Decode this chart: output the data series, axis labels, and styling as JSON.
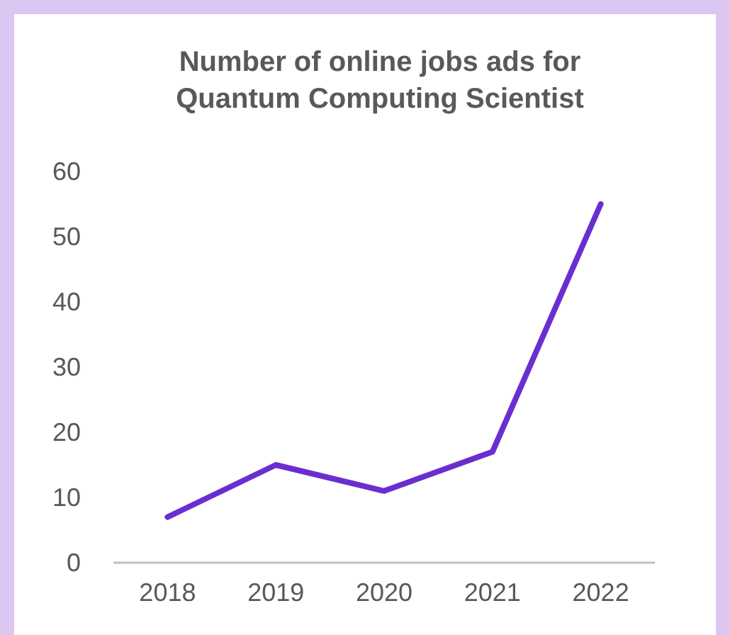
{
  "chart_data": {
    "type": "line",
    "title": "Number of online jobs ads for Quantum Computing Scientist",
    "categories": [
      "2018",
      "2019",
      "2020",
      "2021",
      "2022"
    ],
    "series": [
      {
        "color": "#6a2ed0",
        "values": [
          7,
          15,
          11,
          17,
          55
        ]
      }
    ],
    "ylim": [
      0,
      60
    ],
    "yticks": [
      0,
      10,
      20,
      30,
      40,
      50,
      60
    ],
    "marker": "none",
    "line_style": "solid"
  }
}
